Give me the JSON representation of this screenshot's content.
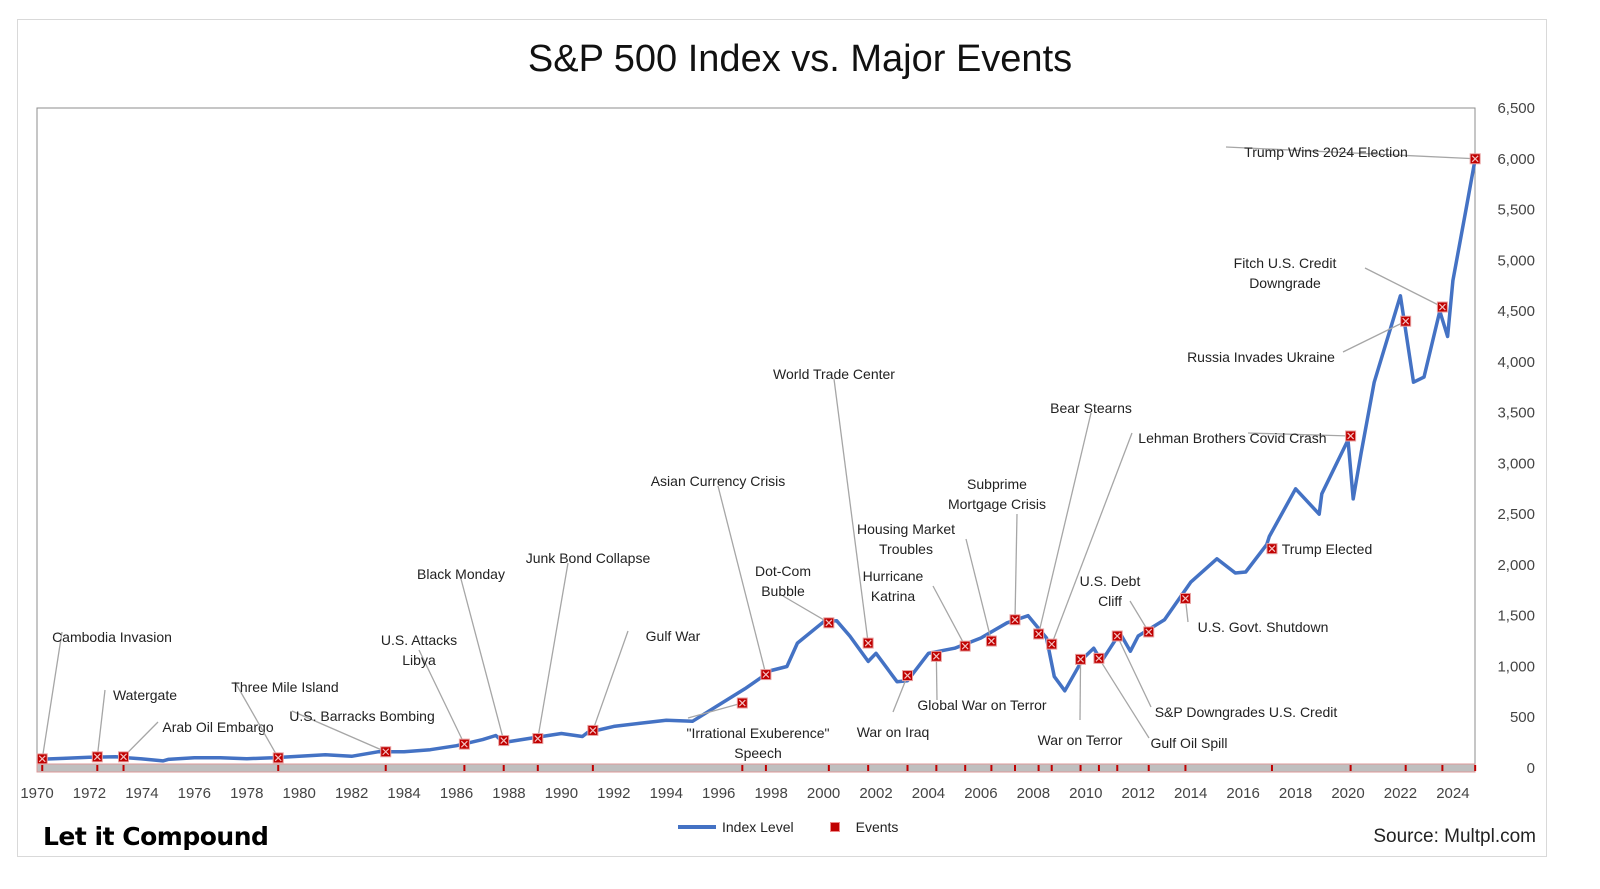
{
  "title": "S&P 500 Index vs. Major Events",
  "logo": "Let it Compound",
  "source": "Source: Multpl.com",
  "legend": {
    "series": "Index Level",
    "events": "Events"
  },
  "colors": {
    "line": "#4472c4",
    "event": "#c00000"
  },
  "chart_data": {
    "type": "line",
    "title": "S&P 500 Index vs. Major Events",
    "xlim": [
      1970,
      2025
    ],
    "ylim": [
      0,
      6500
    ],
    "xticks": [
      "1970",
      "1972",
      "1974",
      "1976",
      "1978",
      "1980",
      "1982",
      "1984",
      "1986",
      "1988",
      "1990",
      "1992",
      "1994",
      "1996",
      "1998",
      "2000",
      "2002",
      "2004",
      "2006",
      "2008",
      "2010",
      "2012",
      "2014",
      "2016",
      "2018",
      "2020",
      "2022",
      "2024"
    ],
    "yticks": [
      "0",
      "500",
      "1,000",
      "1,500",
      "2,000",
      "2,500",
      "3,000",
      "3,500",
      "4,000",
      "4,500",
      "5,000",
      "5,500",
      "6,000",
      "6,500"
    ],
    "series": [
      {
        "name": "Index Level",
        "x": [
          1970,
          1971,
          1972,
          1973,
          1974,
          1974.8,
          1975,
          1976,
          1977,
          1978,
          1979,
          1980,
          1981,
          1982,
          1983,
          1984,
          1985,
          1986,
          1987,
          1987.5,
          1987.8,
          1988,
          1989,
          1990,
          1990.8,
          1991,
          1992,
          1993,
          1994,
          1995,
          1996,
          1997,
          1998,
          1998.6,
          1999,
          2000,
          2000.5,
          2001,
          2001.7,
          2002,
          2002.8,
          2003.2,
          2004,
          2005,
          2006,
          2007,
          2007.8,
          2008.5,
          2008.8,
          2009.2,
          2009.9,
          2010.3,
          2010.6,
          2011.3,
          2011.7,
          2012,
          2013,
          2014,
          2015,
          2015.7,
          2016.1,
          2016.9,
          2017,
          2018,
          2018.9,
          2019,
          2020,
          2020.2,
          2020.5,
          2021,
          2022,
          2022.5,
          2022.9,
          2023.5,
          2023.8,
          2024,
          2024.5,
          2024.85
        ],
        "y": [
          85,
          95,
          105,
          110,
          90,
          70,
          85,
          100,
          100,
          92,
          100,
          115,
          130,
          115,
          160,
          160,
          180,
          220,
          280,
          320,
          250,
          260,
          300,
          340,
          310,
          350,
          410,
          440,
          470,
          460,
          620,
          780,
          960,
          1000,
          1230,
          1440,
          1450,
          1300,
          1050,
          1130,
          850,
          860,
          1130,
          1180,
          1280,
          1430,
          1500,
          1280,
          900,
          760,
          1080,
          1180,
          1050,
          1330,
          1150,
          1300,
          1460,
          1830,
          2060,
          1920,
          1930,
          2200,
          2280,
          2750,
          2500,
          2700,
          3230,
          2650,
          3100,
          3800,
          4650,
          3800,
          3850,
          4500,
          4250,
          4800,
          5500,
          6000
        ]
      }
    ],
    "events": [
      {
        "label": "Cambodia Invasion",
        "x": 1970.2,
        "y": 90
      },
      {
        "label": "Watergate",
        "x": 1972.3,
        "y": 110
      },
      {
        "label": "Arab Oil Embargo",
        "x": 1973.3,
        "y": 110
      },
      {
        "label": "Three Mile Island",
        "x": 1979.2,
        "y": 100
      },
      {
        "label": "U.S. Barracks Bombing",
        "x": 1983.3,
        "y": 160
      },
      {
        "label": "U.S. Attacks Libya",
        "x": 1986.3,
        "y": 235
      },
      {
        "label": "Black Monday",
        "x": 1987.8,
        "y": 270
      },
      {
        "label": "Junk Bond Collapse",
        "x": 1989.1,
        "y": 290
      },
      {
        "label": "Gulf War",
        "x": 1991.2,
        "y": 370
      },
      {
        "label": "\"Irrational Exuberence\" Speech",
        "x": 1996.9,
        "y": 640
      },
      {
        "label": "Asian Currency Crisis",
        "x": 1997.8,
        "y": 920
      },
      {
        "label": "Dot-Com Bubble",
        "x": 2000.2,
        "y": 1430
      },
      {
        "label": "World Trade Center",
        "x": 2001.7,
        "y": 1230
      },
      {
        "label": "War on Iraq",
        "x": 2003.2,
        "y": 910
      },
      {
        "label": "Global War on Terror",
        "x": 2004.3,
        "y": 1100
      },
      {
        "label": "Hurricane Katrina",
        "x": 2005.4,
        "y": 1200
      },
      {
        "label": "Housing Market Troubles",
        "x": 2006.4,
        "y": 1250
      },
      {
        "label": "Subprime Mortgage Crisis",
        "x": 2007.3,
        "y": 1460
      },
      {
        "label": "Bear Stearns",
        "x": 2008.2,
        "y": 1320
      },
      {
        "label": "Lehman Brothers",
        "x": 2008.7,
        "y": 1220
      },
      {
        "label": "War on Terror",
        "x": 2009.8,
        "y": 1070
      },
      {
        "label": "Gulf Oil Spill",
        "x": 2010.5,
        "y": 1080
      },
      {
        "label": "S&P Downgrades U.S. Credit",
        "x": 2011.2,
        "y": 1300
      },
      {
        "label": "U.S. Debt Cliff",
        "x": 2012.4,
        "y": 1340
      },
      {
        "label": "U.S. Govt. Shutdown",
        "x": 2013.8,
        "y": 1670
      },
      {
        "label": "Trump Elected",
        "x": 2017.1,
        "y": 2160
      },
      {
        "label": "Covid Crash",
        "x": 2020.1,
        "y": 3270
      },
      {
        "label": "Russia Invades Ukraine",
        "x": 2022.2,
        "y": 4400
      },
      {
        "label": "Fitch U.S. Credit Downgrade",
        "x": 2023.6,
        "y": 4540
      },
      {
        "label": "Trump Wins 2024 Election",
        "x": 2024.85,
        "y": 6000
      }
    ]
  }
}
